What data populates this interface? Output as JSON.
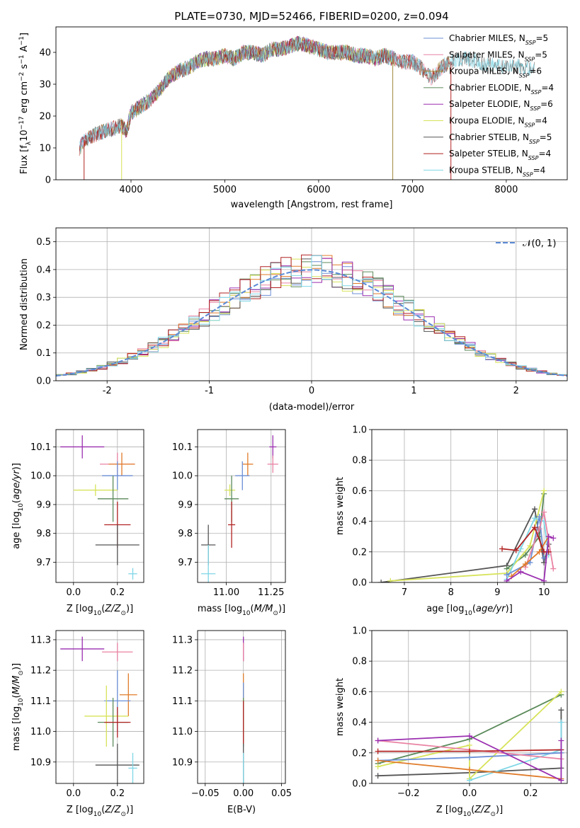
{
  "figure_title": "PLATE=0730, MJD=52466, FIBERID=0200, z=0.094",
  "chart_data": [
    {
      "id": "spectrum",
      "type": "line",
      "title": "PLATE=0730, MJD=52466, FIBERID=0200, z=0.094",
      "xlabel": "wavelength [Angstrom, rest frame]",
      "ylabel": "Flux [f_λ10^-17 erg cm^-2 s^-1 A^-1]",
      "xlim": [
        3200,
        8650
      ],
      "ylim": [
        0,
        48
      ],
      "xticks": [
        4000,
        5000,
        6000,
        7000,
        8000
      ],
      "yticks": [
        0,
        10,
        20,
        30,
        40
      ],
      "grid": false,
      "legend_position": "top-right",
      "continuum": [
        [
          3450,
          10
        ],
        [
          3500,
          12
        ],
        [
          3600,
          14
        ],
        [
          3700,
          15
        ],
        [
          3800,
          16
        ],
        [
          3900,
          17
        ],
        [
          3950,
          15
        ],
        [
          4000,
          21
        ],
        [
          4100,
          23
        ],
        [
          4200,
          25
        ],
        [
          4300,
          28
        ],
        [
          4400,
          32
        ],
        [
          4500,
          34
        ],
        [
          4600,
          35
        ],
        [
          4700,
          37
        ],
        [
          4800,
          38
        ],
        [
          4900,
          38
        ],
        [
          5000,
          39
        ],
        [
          5100,
          38
        ],
        [
          5200,
          40
        ],
        [
          5300,
          40
        ],
        [
          5400,
          39
        ],
        [
          5500,
          41
        ],
        [
          5600,
          41
        ],
        [
          5700,
          42
        ],
        [
          5800,
          43
        ],
        [
          5900,
          42
        ],
        [
          6000,
          41
        ],
        [
          6100,
          40
        ],
        [
          6200,
          40
        ],
        [
          6300,
          40
        ],
        [
          6400,
          39
        ],
        [
          6500,
          39
        ],
        [
          6600,
          38
        ],
        [
          6700,
          39
        ],
        [
          6800,
          38
        ],
        [
          6900,
          37
        ],
        [
          7000,
          37
        ],
        [
          7100,
          35
        ],
        [
          7200,
          32
        ],
        [
          7300,
          35
        ],
        [
          7400,
          37
        ],
        [
          7500,
          38
        ],
        [
          7600,
          38
        ],
        [
          7700,
          37
        ],
        [
          7800,
          36
        ],
        [
          7900,
          36
        ],
        [
          8000,
          35
        ],
        [
          8100,
          36
        ],
        [
          8200,
          35
        ],
        [
          8300,
          35
        ]
      ],
      "dropouts": [
        [
          3500,
          0
        ],
        [
          3900,
          0
        ],
        [
          6790,
          0
        ],
        [
          7410,
          0
        ]
      ],
      "series": [
        {
          "name": "Chabrier MILES, N_SSP=5",
          "color": "#6b8fd6",
          "xrange": [
            3450,
            7100
          ]
        },
        {
          "name": "Salpeter MILES, N_SSP=5",
          "color": "#e983a3",
          "xrange": [
            3450,
            7400
          ]
        },
        {
          "name": "Kroupa MILES, N_SSP=6",
          "color": "#a08a3c",
          "xrange": [
            3450,
            7400
          ]
        },
        {
          "name": "Chabrier ELODIE, N_SSP=4",
          "color": "#5a8a5a",
          "xrange": [
            3900,
            6800
          ]
        },
        {
          "name": "Salpeter ELODIE, N_SSP=6",
          "color": "#9b2fb0",
          "xrange": [
            3900,
            6800
          ]
        },
        {
          "name": "Kroupa ELODIE, N_SSP=4",
          "color": "#d7e35a",
          "xrange": [
            3900,
            6800
          ]
        },
        {
          "name": "Chabrier STELIB, N_SSP=5",
          "color": "#555555",
          "xrange": [
            3450,
            8300
          ]
        },
        {
          "name": "Salpeter STELIB, N_SSP=4",
          "color": "#b22222",
          "xrange": [
            3450,
            7400
          ]
        },
        {
          "name": "Kroupa STELIB, N_SSP=4",
          "color": "#7fd6e6",
          "xrange": [
            3450,
            8300
          ]
        }
      ]
    },
    {
      "id": "residuals",
      "type": "line",
      "xlabel": "(data-model)/error",
      "ylabel": "Normed distribution",
      "xlim": [
        -2.5,
        2.5
      ],
      "ylim": [
        0,
        0.55
      ],
      "xticks": [
        -2,
        -1,
        0,
        1,
        2
      ],
      "yticks": [
        0.0,
        0.1,
        0.2,
        0.3,
        0.4,
        0.5
      ],
      "grid": true,
      "legend_position": "top-right",
      "gaussian_label": "𝒩(0, 1)",
      "gaussian_color": "#5b8ad6",
      "bin_width": 0.1,
      "hist_colors": [
        "#6b8fd6",
        "#e983a3",
        "#e07b2a",
        "#5a8a5a",
        "#9b2fb0",
        "#d7e35a",
        "#555555",
        "#b22222",
        "#7fd6e6"
      ]
    },
    {
      "id": "age_vs_Z",
      "type": "scatter",
      "xlabel": "Z [log10(Z/Z⊙)]",
      "ylabel": "age  [log10(age/yr)]",
      "xlim": [
        -0.08,
        0.32
      ],
      "ylim": [
        9.63,
        10.16
      ],
      "xticks": [
        0.0,
        0.2
      ],
      "yticks": [
        9.7,
        9.8,
        9.9,
        10.0,
        10.1
      ],
      "grid": true,
      "points": [
        {
          "color": "#9b2fb0",
          "x": 0.04,
          "y": 10.1,
          "xerr": 0.1,
          "yerr": 0.04
        },
        {
          "color": "#e983a3",
          "x": 0.2,
          "y": 10.04,
          "xerr": 0.08,
          "yerr": 0.04
        },
        {
          "color": "#e07b2a",
          "x": 0.22,
          "y": 10.04,
          "xerr": 0.06,
          "yerr": 0.04
        },
        {
          "color": "#6b8fd6",
          "x": 0.2,
          "y": 10.0,
          "xerr": 0.07,
          "yerr": 0.05
        },
        {
          "color": "#d7e35a",
          "x": 0.1,
          "y": 9.95,
          "xerr": 0.1,
          "yerr": 0.02
        },
        {
          "color": "#5a8a5a",
          "x": 0.18,
          "y": 9.92,
          "xerr": 0.07,
          "yerr": 0.08
        },
        {
          "color": "#b22222",
          "x": 0.2,
          "y": 9.83,
          "xerr": 0.06,
          "yerr": 0.08
        },
        {
          "color": "#555555",
          "x": 0.2,
          "y": 9.76,
          "xerr": 0.1,
          "yerr": 0.07
        },
        {
          "color": "#7fd6e6",
          "x": 0.27,
          "y": 9.66,
          "xerr": 0.02,
          "yerr": 0.02
        }
      ]
    },
    {
      "id": "age_vs_mass",
      "type": "scatter",
      "xlabel": "mass [log10(M/M⊙)]",
      "xlim": [
        10.84,
        11.33
      ],
      "ylim": [
        9.63,
        10.16
      ],
      "xticks": [
        11.0,
        11.25
      ],
      "yticks": [
        9.7,
        9.8,
        9.9,
        10.0,
        10.1
      ],
      "grid": true,
      "points": [
        {
          "color": "#9b2fb0",
          "x": 11.26,
          "y": 10.1,
          "xerr": 0.02,
          "yerr": 0.04
        },
        {
          "color": "#e983a3",
          "x": 11.26,
          "y": 10.04,
          "xerr": 0.03,
          "yerr": 0.03
        },
        {
          "color": "#e07b2a",
          "x": 11.12,
          "y": 10.04,
          "xerr": 0.03,
          "yerr": 0.04
        },
        {
          "color": "#6b8fd6",
          "x": 11.09,
          "y": 10.0,
          "xerr": 0.04,
          "yerr": 0.05
        },
        {
          "color": "#d7e35a",
          "x": 11.02,
          "y": 9.95,
          "xerr": 0.03,
          "yerr": 0.02
        },
        {
          "color": "#5a8a5a",
          "x": 11.03,
          "y": 9.92,
          "xerr": 0.04,
          "yerr": 0.08
        },
        {
          "color": "#b22222",
          "x": 11.03,
          "y": 9.83,
          "xerr": 0.02,
          "yerr": 0.08
        },
        {
          "color": "#555555",
          "x": 10.9,
          "y": 9.76,
          "xerr": 0.04,
          "yerr": 0.07
        },
        {
          "color": "#7fd6e6",
          "x": 10.9,
          "y": 9.66,
          "xerr": 0.04,
          "yerr": 0.1
        }
      ]
    },
    {
      "id": "age_weights",
      "type": "line",
      "xlabel": "age  [log10(age/yr)]",
      "ylabel": "mass weight",
      "xlim": [
        6.3,
        10.5
      ],
      "ylim": [
        0,
        1
      ],
      "xticks": [
        7,
        8,
        9,
        10
      ],
      "yticks": [
        0.0,
        0.2,
        0.4,
        0.6,
        0.8,
        1.0
      ],
      "grid": true,
      "series": [
        {
          "color": "#555555",
          "x": [
            6.5,
            9.2,
            9.8,
            10.0,
            10.1
          ],
          "y": [
            0.0,
            0.11,
            0.48,
            0.13,
            0.25
          ]
        },
        {
          "color": "#5a8a5a",
          "x": [
            9.2,
            9.6,
            9.9,
            10.0
          ],
          "y": [
            0.09,
            0.18,
            0.3,
            0.58
          ]
        },
        {
          "color": "#d7e35a",
          "x": [
            6.7,
            9.2,
            9.7,
            10.0
          ],
          "y": [
            0.01,
            0.06,
            0.24,
            0.6
          ]
        },
        {
          "color": "#7fd6e6",
          "x": [
            9.2,
            9.5,
            9.8,
            10.0,
            10.1
          ],
          "y": [
            0.02,
            0.22,
            0.42,
            0.4,
            0.18
          ]
        },
        {
          "color": "#6b8fd6",
          "x": [
            9.2,
            9.7,
            9.9,
            10.0
          ],
          "y": [
            0.05,
            0.13,
            0.43,
            0.16
          ]
        },
        {
          "color": "#e983a3",
          "x": [
            9.6,
            9.9,
            10.0,
            10.2
          ],
          "y": [
            0.1,
            0.35,
            0.46,
            0.09
          ]
        },
        {
          "color": "#e07b2a",
          "x": [
            9.3,
            9.6,
            9.9,
            10.1
          ],
          "y": [
            0.04,
            0.12,
            0.2,
            0.3
          ]
        },
        {
          "color": "#b22222",
          "x": [
            9.1,
            9.4,
            9.8,
            10.0,
            10.1
          ],
          "y": [
            0.22,
            0.21,
            0.36,
            0.2,
            0.2
          ]
        },
        {
          "color": "#9b2fb0",
          "x": [
            9.2,
            9.5,
            10.0,
            10.1,
            10.2
          ],
          "y": [
            0.01,
            0.07,
            0.01,
            0.3,
            0.29
          ]
        }
      ]
    },
    {
      "id": "mass_vs_Z",
      "type": "scatter",
      "xlabel": "Z [log10(Z/Z⊙)]",
      "ylabel": "mass [log10(M/M⊙)]",
      "xlim": [
        -0.08,
        0.32
      ],
      "ylim": [
        10.83,
        11.33
      ],
      "xticks": [
        0.0,
        0.2
      ],
      "yticks": [
        10.9,
        11.0,
        11.1,
        11.2,
        11.3
      ],
      "grid": true,
      "points": [
        {
          "color": "#9b2fb0",
          "x": 0.04,
          "y": 11.27,
          "xerr": 0.1,
          "yerr": 0.04
        },
        {
          "color": "#e983a3",
          "x": 0.2,
          "y": 11.26,
          "xerr": 0.07,
          "yerr": 0.03
        },
        {
          "color": "#e07b2a",
          "x": 0.25,
          "y": 11.12,
          "xerr": 0.04,
          "yerr": 0.07
        },
        {
          "color": "#6b8fd6",
          "x": 0.2,
          "y": 11.1,
          "xerr": 0.06,
          "yerr": 0.1
        },
        {
          "color": "#d7e35a",
          "x": 0.15,
          "y": 11.05,
          "xerr": 0.1,
          "yerr": 0.1
        },
        {
          "color": "#5a8a5a",
          "x": 0.18,
          "y": 11.03,
          "xerr": 0.07,
          "yerr": 0.08
        },
        {
          "color": "#b22222",
          "x": 0.2,
          "y": 11.03,
          "xerr": 0.06,
          "yerr": 0.05
        },
        {
          "color": "#555555",
          "x": 0.2,
          "y": 10.89,
          "xerr": 0.1,
          "yerr": 0.07
        },
        {
          "color": "#7fd6e6",
          "x": 0.27,
          "y": 10.88,
          "xerr": 0.02,
          "yerr": 0.05
        }
      ]
    },
    {
      "id": "mass_vs_ebv",
      "type": "scatter",
      "xlabel": "E(B-V)",
      "xlim": [
        -0.06,
        0.055
      ],
      "ylim": [
        10.83,
        11.33
      ],
      "xticks": [
        -0.05,
        0.0,
        0.05
      ],
      "yticks": [
        10.9,
        11.0,
        11.1,
        11.2,
        11.3
      ],
      "grid": true,
      "points": [
        {
          "color": "#9b2fb0",
          "x": 0.0,
          "y": 11.27,
          "xerr": 0.0,
          "yerr": 0.04
        },
        {
          "color": "#e983a3",
          "x": 0.0,
          "y": 11.26,
          "xerr": 0.0,
          "yerr": 0.03
        },
        {
          "color": "#e07b2a",
          "x": 0.0,
          "y": 11.12,
          "xerr": 0.0,
          "yerr": 0.07
        },
        {
          "color": "#6b8fd6",
          "x": 0.0,
          "y": 11.1,
          "xerr": 0.0,
          "yerr": 0.06
        },
        {
          "color": "#d7e35a",
          "x": 0.0,
          "y": 11.05,
          "xerr": 0.0,
          "yerr": 0.06
        },
        {
          "color": "#5a8a5a",
          "x": 0.0,
          "y": 11.03,
          "xerr": 0.0,
          "yerr": 0.08
        },
        {
          "color": "#b22222",
          "x": 0.0,
          "y": 11.03,
          "xerr": 0.0,
          "yerr": 0.07
        },
        {
          "color": "#555555",
          "x": 0.0,
          "y": 10.89,
          "xerr": 0.0,
          "yerr": 0.07
        },
        {
          "color": "#7fd6e6",
          "x": 0.0,
          "y": 10.88,
          "xerr": 0.0,
          "yerr": 0.05
        }
      ]
    },
    {
      "id": "Z_weights",
      "type": "line",
      "xlabel": "Z [log10(Z/Z⊙)]",
      "ylabel": "mass weight",
      "xlim": [
        -0.32,
        0.32
      ],
      "ylim": [
        0,
        1
      ],
      "xticks": [
        -0.2,
        0.0,
        0.2
      ],
      "yticks": [
        0.0,
        0.2,
        0.4,
        0.6,
        0.8,
        1.0
      ],
      "grid": true,
      "series": [
        {
          "color": "#555555",
          "x": [
            -0.3,
            0.0,
            0.3,
            0.3
          ],
          "y": [
            0.05,
            0.07,
            0.1,
            0.48
          ]
        },
        {
          "color": "#5a8a5a",
          "x": [
            -0.3,
            0.0,
            0.3
          ],
          "y": [
            0.13,
            0.29,
            0.58
          ]
        },
        {
          "color": "#d7e35a",
          "x": [
            -0.3,
            0.0,
            0.0,
            0.3
          ],
          "y": [
            0.11,
            0.25,
            0.03,
            0.6
          ]
        },
        {
          "color": "#7fd6e6",
          "x": [
            0.0,
            0.3,
            0.3
          ],
          "y": [
            0.02,
            0.22,
            0.4
          ]
        },
        {
          "color": "#6b8fd6",
          "x": [
            -0.3,
            0.0,
            0.3
          ],
          "y": [
            0.15,
            0.17,
            0.2
          ]
        },
        {
          "color": "#e983a3",
          "x": [
            -0.3,
            0.3
          ],
          "y": [
            0.28,
            0.16
          ]
        },
        {
          "color": "#e07b2a",
          "x": [
            -0.3,
            0.0,
            0.3
          ],
          "y": [
            0.15,
            0.09,
            0.03
          ]
        },
        {
          "color": "#b22222",
          "x": [
            -0.3,
            0.0,
            0.3
          ],
          "y": [
            0.21,
            0.21,
            0.22
          ]
        },
        {
          "color": "#9b2fb0",
          "x": [
            -0.3,
            0.0,
            0.3,
            0.3
          ],
          "y": [
            0.28,
            0.31,
            0.02,
            0.28
          ]
        }
      ]
    }
  ]
}
